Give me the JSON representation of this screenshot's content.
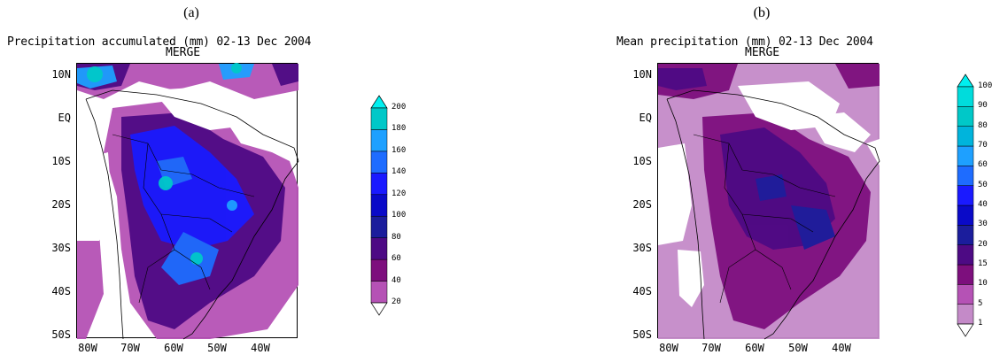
{
  "panels": [
    {
      "letter": "(a)",
      "title": "Precipitation accumulated (mm) 02-13 Dec 2004",
      "subtitle": "MERGE",
      "colorbar": {
        "levels": [
          "20",
          "40",
          "60",
          "80",
          "100",
          "120",
          "140",
          "160",
          "180",
          "200"
        ],
        "colors": [
          "#b552b5",
          "#7d0f7d",
          "#4d0a84",
          "#1b1d9c",
          "#0a0ac8",
          "#1a1aff",
          "#1e6cff",
          "#1ea0ff",
          "#00c8c8",
          "#00f0f0"
        ]
      }
    },
    {
      "letter": "(b)",
      "title": "Mean precipitation (mm) 02-13 Dec 2004",
      "subtitle": "MERGE",
      "colorbar": {
        "levels": [
          "1",
          "5",
          "10",
          "15",
          "20",
          "30",
          "40",
          "50",
          "60",
          "70",
          "80",
          "90",
          "100"
        ],
        "colors": [
          "#c48ac8",
          "#b552b5",
          "#7d0f7d",
          "#4d0a84",
          "#1b1d9c",
          "#0a0ac8",
          "#1a1aff",
          "#1e6cff",
          "#1ea0ff",
          "#00b4dc",
          "#00c8c8",
          "#00dcdc",
          "#00f0f0"
        ]
      }
    }
  ],
  "lat_labels": [
    "10N",
    "EQ",
    "10S",
    "20S",
    "30S",
    "40S",
    "50S"
  ],
  "lon_labels": [
    "80W",
    "70W",
    "60W",
    "50W",
    "40W"
  ]
}
